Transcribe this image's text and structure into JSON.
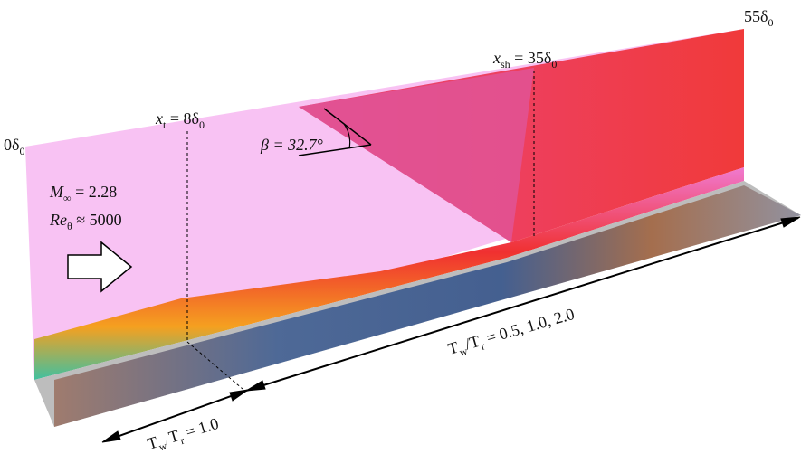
{
  "labels": [
    {
      "parts": [
        "0δ",
        "0"
      ]
    },
    {
      "parts": [
        "x",
        "t",
        " = 8δ",
        "0"
      ]
    },
    {
      "parts": [
        "x",
        "sh",
        " = 35δ",
        "0"
      ]
    },
    {
      "parts": [
        "55δ",
        "0"
      ]
    },
    {
      "parts": [
        "β = 32.7°"
      ]
    },
    {
      "parts": [
        "M",
        "∞",
        " = 2.28"
      ]
    },
    {
      "parts": [
        "Re",
        "θ",
        " ≈ 5000"
      ]
    },
    {
      "parts": [
        "T",
        "w",
        "/T",
        "r",
        " = 0.5, 1.0, 2.0"
      ]
    },
    {
      "parts": [
        "T",
        "w",
        "/T",
        "r",
        " = 1.0"
      ]
    }
  ]
}
